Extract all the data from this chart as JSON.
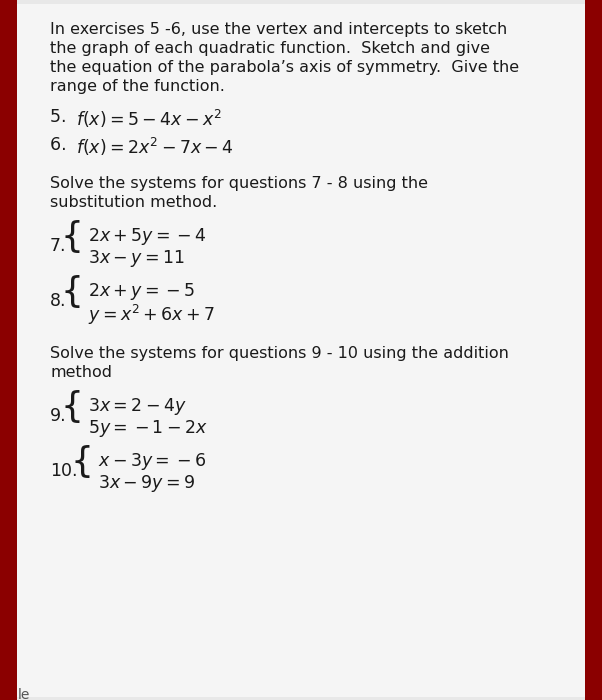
{
  "bg_color": "#e8e8e8",
  "card_color": "#f5f5f5",
  "text_color": "#1a1a1a",
  "accent_color": "#8b0000",
  "para1_lines": [
    "In exercises 5 -6, use the vertex and intercepts to sketch",
    "the graph of each quadratic function.  Sketch and give",
    "the equation of the parabola’s axis of symmetry.  Give the",
    "range of the function."
  ],
  "item5_num": "5. ",
  "item5_math": "$f(x) = 5 - 4x - x^2$",
  "item6_num": "6. ",
  "item6_math": "$f(x) = 2x^2 - 7x - 4$",
  "para2_lines": [
    "Solve the systems for questions 7 - 8 using the",
    "substitution method."
  ],
  "item7_num": "7.",
  "item7_line1": "$2x + 5y = -4$",
  "item7_line2": "$3x - y = 11$",
  "item8_num": "8.",
  "item8_line1": "$2x + y = -5$",
  "item8_line2": "$y = x^2 + 6x + 7$",
  "para3_lines": [
    "Solve the systems for questions 9 - 10 using the addition",
    "method"
  ],
  "item9_num": "9.",
  "item9_line1": "$3x = 2 - 4y$",
  "item9_line2": "$5y = -1 - 2x$",
  "item10_num": "10.",
  "item10_line1": "$x - 3y = -6$",
  "item10_line2": "$3x - 9y = 9$",
  "footer": "le"
}
